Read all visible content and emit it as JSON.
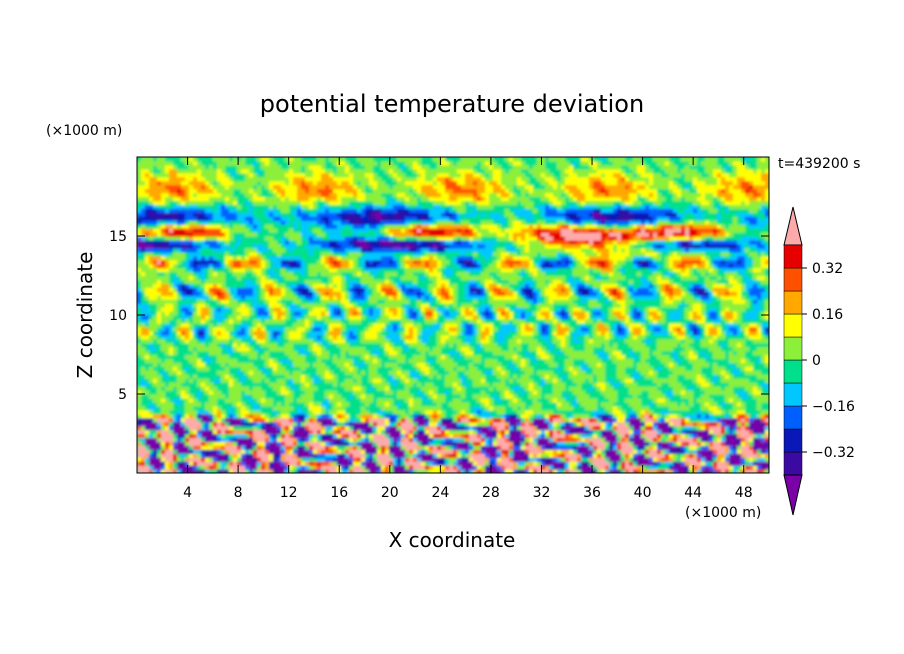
{
  "chart_data": {
    "type": "heatmap",
    "title": "potential temperature deviation",
    "xlabel": "X coordinate",
    "ylabel": "Z coordinate",
    "x_unit": "(×1000 m)",
    "y_unit": "(×1000 m)",
    "time_label": "t=439200 s",
    "xlim": [
      0,
      50
    ],
    "ylim": [
      0,
      20
    ],
    "x_ticks": [
      4,
      8,
      12,
      16,
      20,
      24,
      28,
      32,
      36,
      40,
      44,
      48
    ],
    "y_ticks": [
      5,
      10,
      15
    ],
    "colorbar": {
      "levels": [
        -0.4,
        -0.32,
        -0.24,
        -0.16,
        -0.08,
        0,
        0.08,
        0.16,
        0.24,
        0.32,
        0.4
      ],
      "colors": [
        "#7a00a8",
        "#3a0aa3",
        "#0a18b8",
        "#0060ff",
        "#00c8ff",
        "#00e08a",
        "#8cf03a",
        "#ffff00",
        "#ffa800",
        "#ff5000",
        "#e60000",
        "#ffaaaa"
      ],
      "tick_values": [
        0.32,
        0.16,
        0,
        -0.16,
        -0.32
      ],
      "tick_labels": [
        "0.32",
        "0.16",
        "0",
        "−0.16",
        "−0.32"
      ]
    }
  }
}
